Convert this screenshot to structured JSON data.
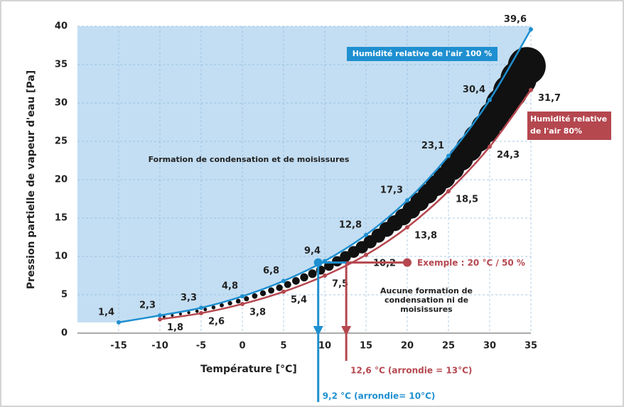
{
  "chart_data": {
    "type": "line",
    "x_label": "Température [°C]",
    "y_label": "Pression partielle de vapeur d'eau [Pa]",
    "x": [
      -15,
      -10,
      -5,
      0,
      5,
      10,
      15,
      20,
      25,
      30,
      35
    ],
    "series": [
      {
        "name": "Humidité relative de l'air 100 %",
        "color": "#1e8fd0",
        "values": [
          1.4,
          2.3,
          3.3,
          4.8,
          6.8,
          9.4,
          12.8,
          17.3,
          23.1,
          30.4,
          39.6
        ],
        "value_labels": [
          "1,4",
          "2,3",
          "3,3",
          "4,8",
          "6,8",
          "9,4",
          "12,8",
          "17,3",
          "23,1",
          "30,4",
          "39,6"
        ]
      },
      {
        "name": "Humidité relative de l'air 80%",
        "color": "#b5474f",
        "values": [
          null,
          1.8,
          2.6,
          3.8,
          5.4,
          7.5,
          10.2,
          13.8,
          18.5,
          24.3,
          31.7
        ],
        "value_labels": [
          null,
          "1,8",
          "2,6",
          "3,8",
          "5,4",
          "7,5",
          "10,2",
          "13,8",
          "18,5",
          "24,3",
          "31,7"
        ]
      }
    ],
    "xlim": [
      -20,
      35
    ],
    "xticks": [
      -15,
      -10,
      -5,
      0,
      5,
      10,
      15,
      20,
      25,
      30,
      35
    ],
    "ylim": [
      0,
      40
    ],
    "yticks": [
      0,
      5,
      10,
      15,
      20,
      25,
      30,
      35,
      40
    ],
    "grid": true,
    "fill_color": "#c3def3",
    "annotations": {
      "above": "Formation de condensation et de moisissures",
      "below": "Aucune formation de condensation ni de moisissures"
    },
    "example": {
      "x": 20,
      "y": 9.2,
      "label": "Exemple : 20 °C / 50 %",
      "dew_x": 12.6,
      "dew_label": "12,6 °C (arrondie = 13°C)",
      "blue_x": 9.2,
      "blue_label": "9,2 °C (arrondie= 10°C)"
    }
  }
}
